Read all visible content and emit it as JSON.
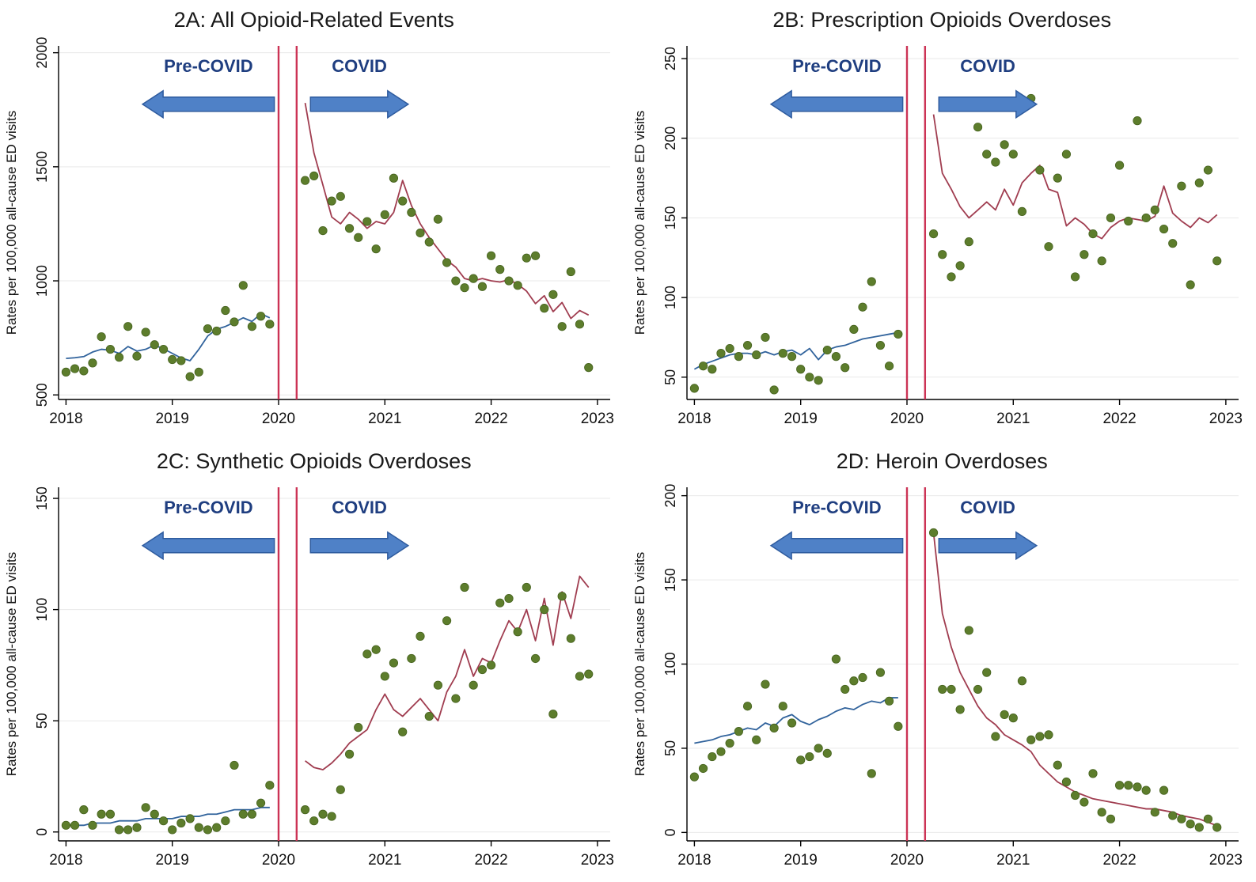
{
  "figure": {
    "background": "#ffffff"
  },
  "styles": {
    "scatter_color": "#5d7d2c",
    "scatter_edge": "#46621e",
    "pre_line_color": "#31639c",
    "covid_line_color": "#a03d50",
    "vline_color": "#cc3355",
    "grid_color": "#e9e9e9",
    "axis_color": "#000000",
    "arrow_fill": "#4f81c7",
    "arrow_edge": "#2e5b9e",
    "annotation_color": "#1f3e80",
    "tick_label_color": "#111111"
  },
  "x_pre": [
    2018.0,
    2018.083,
    2018.167,
    2018.25,
    2018.333,
    2018.417,
    2018.5,
    2018.583,
    2018.667,
    2018.75,
    2018.833,
    2018.917,
    2019.0,
    2019.083,
    2019.167,
    2019.25,
    2019.333,
    2019.417,
    2019.5,
    2019.583,
    2019.667,
    2019.75,
    2019.833,
    2019.917
  ],
  "x_covid": [
    2020.25,
    2020.333,
    2020.417,
    2020.5,
    2020.583,
    2020.667,
    2020.75,
    2020.833,
    2020.917,
    2021.0,
    2021.083,
    2021.167,
    2021.25,
    2021.333,
    2021.417,
    2021.5,
    2021.583,
    2021.667,
    2021.75,
    2021.833,
    2021.917,
    2022.0,
    2022.083,
    2022.167,
    2022.25,
    2022.333,
    2022.417,
    2022.5,
    2022.583,
    2022.667,
    2022.75,
    2022.833,
    2022.917
  ],
  "chart_data": [
    {
      "type": "scatter",
      "title": "2A: All Opioid-Related Events",
      "xlabel": "",
      "ylabel": "Rates per 100,000 all-cause ED visits",
      "xlim": [
        2017.93,
        2023.12
      ],
      "ylim": [
        480,
        2030
      ],
      "yticks": [
        500,
        1000,
        1500,
        2000
      ],
      "xticks": [
        2018,
        2019,
        2020,
        2021,
        2022,
        2023
      ],
      "vlines": [
        2020.0,
        2020.17
      ],
      "pre_label": "Pre-COVID",
      "covid_label": "COVID",
      "pre_arrow": [
        2018.72,
        2019.96
      ],
      "covid_arrow": [
        2020.3,
        2021.22
      ],
      "pre_scatter_y": [
        600,
        615,
        605,
        640,
        755,
        700,
        665,
        800,
        670,
        775,
        720,
        700,
        655,
        650,
        580,
        600,
        790,
        780,
        870,
        820,
        980,
        800,
        845,
        810
      ],
      "pre_line_y": [
        660,
        663,
        668,
        688,
        700,
        696,
        682,
        712,
        692,
        700,
        718,
        702,
        682,
        662,
        650,
        700,
        758,
        788,
        800,
        818,
        838,
        822,
        856,
        838
      ],
      "covid_scatter_y": [
        1440,
        1460,
        1220,
        1350,
        1370,
        1230,
        1190,
        1260,
        1140,
        1290,
        1450,
        1350,
        1300,
        1210,
        1170,
        1270,
        1080,
        1000,
        970,
        1010,
        975,
        1110,
        1050,
        1000,
        980,
        1100,
        1110,
        880,
        940,
        800,
        1040,
        810,
        620
      ],
      "covid_line_y": [
        1780,
        1560,
        1420,
        1280,
        1250,
        1300,
        1270,
        1230,
        1260,
        1250,
        1300,
        1440,
        1330,
        1250,
        1190,
        1140,
        1090,
        1060,
        1010,
        1000,
        1010,
        1000,
        995,
        1005,
        985,
        955,
        900,
        935,
        865,
        905,
        835,
        870,
        850
      ]
    },
    {
      "type": "scatter",
      "title": "2B: Prescription Opioids Overdoses",
      "xlabel": "",
      "ylabel": "Rates per 100,000 all-cause ED visits",
      "xlim": [
        2017.93,
        2023.12
      ],
      "ylim": [
        36,
        258
      ],
      "yticks": [
        50,
        100,
        150,
        200,
        250
      ],
      "xticks": [
        2018,
        2019,
        2020,
        2021,
        2022,
        2023
      ],
      "vlines": [
        2020.0,
        2020.17
      ],
      "pre_label": "Pre-COVID",
      "covid_label": "COVID",
      "pre_arrow": [
        2018.72,
        2019.96
      ],
      "covid_arrow": [
        2020.3,
        2021.22
      ],
      "pre_scatter_y": [
        43,
        57,
        55,
        65,
        68,
        63,
        70,
        64,
        75,
        42,
        65,
        63,
        55,
        50,
        48,
        67,
        63,
        56,
        80,
        94,
        110,
        70,
        57,
        77
      ],
      "pre_line_y": [
        55,
        58,
        60,
        62,
        64,
        65,
        65,
        64,
        66,
        64,
        66,
        67,
        64,
        68,
        61,
        67,
        69,
        70,
        72,
        74,
        75,
        76,
        77,
        78
      ],
      "covid_scatter_y": [
        140,
        127,
        113,
        120,
        135,
        207,
        190,
        185,
        196,
        190,
        154,
        225,
        180,
        132,
        175,
        190,
        113,
        127,
        140,
        123,
        150,
        183,
        148,
        211,
        150,
        155,
        143,
        134,
        170,
        108,
        172,
        180,
        123
      ],
      "covid_line_y": [
        215,
        178,
        168,
        157,
        150,
        155,
        160,
        155,
        168,
        158,
        172,
        178,
        183,
        168,
        166,
        145,
        150,
        146,
        140,
        137,
        144,
        148,
        150,
        149,
        148,
        151,
        170,
        153,
        148,
        144,
        150,
        147,
        152
      ]
    },
    {
      "type": "scatter",
      "title": "2C: Synthetic Opioids Overdoses",
      "xlabel": "",
      "ylabel": "Rates per 100,000 all-cause ED visits",
      "xlim": [
        2017.93,
        2023.12
      ],
      "ylim": [
        -4,
        155
      ],
      "yticks": [
        0,
        50,
        100,
        150
      ],
      "xticks": [
        2018,
        2019,
        2020,
        2021,
        2022,
        2023
      ],
      "vlines": [
        2020.0,
        2020.17
      ],
      "pre_label": "Pre-COVID",
      "covid_label": "COVID",
      "pre_arrow": [
        2018.72,
        2019.96
      ],
      "covid_arrow": [
        2020.3,
        2021.22
      ],
      "pre_scatter_y": [
        3,
        3,
        10,
        3,
        8,
        8,
        1,
        1,
        2,
        11,
        8,
        5,
        1,
        4,
        6,
        2,
        1,
        2,
        5,
        30,
        8,
        8,
        13,
        21
      ],
      "pre_line_y": [
        3,
        3,
        3,
        4,
        4,
        4,
        5,
        5,
        5,
        6,
        6,
        6,
        6,
        7,
        7,
        7,
        8,
        8,
        9,
        10,
        10,
        10,
        11,
        11
      ],
      "covid_scatter_y": [
        10,
        5,
        8,
        7,
        19,
        35,
        47,
        80,
        82,
        70,
        76,
        45,
        78,
        88,
        52,
        66,
        95,
        60,
        110,
        66,
        73,
        75,
        103,
        105,
        90,
        110,
        78,
        100,
        53,
        106,
        87,
        70,
        71
      ],
      "covid_line_y": [
        32,
        29,
        28,
        31,
        35,
        40,
        43,
        46,
        55,
        62,
        55,
        52,
        56,
        60,
        55,
        50,
        63,
        70,
        82,
        70,
        78,
        76,
        86,
        95,
        90,
        100,
        86,
        105,
        84,
        108,
        96,
        115,
        110
      ]
    },
    {
      "type": "scatter",
      "title": "2D: Heroin Overdoses",
      "xlabel": "",
      "ylabel": "Rates per 100,000 all-cause ED visits",
      "xlim": [
        2017.93,
        2023.12
      ],
      "ylim": [
        -5,
        205
      ],
      "yticks": [
        0,
        50,
        100,
        150,
        200
      ],
      "xticks": [
        2018,
        2019,
        2020,
        2021,
        2022,
        2023
      ],
      "vlines": [
        2020.0,
        2020.17
      ],
      "pre_label": "Pre-COVID",
      "covid_label": "COVID",
      "pre_arrow": [
        2018.72,
        2019.96
      ],
      "covid_arrow": [
        2020.3,
        2021.22
      ],
      "pre_scatter_y": [
        33,
        38,
        45,
        48,
        53,
        60,
        75,
        55,
        88,
        62,
        75,
        65,
        43,
        45,
        50,
        47,
        103,
        85,
        90,
        92,
        35,
        95,
        78,
        63
      ],
      "pre_line_y": [
        53,
        54,
        55,
        57,
        58,
        60,
        62,
        61,
        65,
        63,
        68,
        70,
        66,
        64,
        67,
        69,
        72,
        74,
        73,
        76,
        78,
        77,
        80,
        80
      ],
      "covid_scatter_y": [
        178,
        85,
        85,
        73,
        120,
        85,
        95,
        57,
        70,
        68,
        90,
        55,
        57,
        58,
        40,
        30,
        22,
        18,
        35,
        12,
        8,
        28,
        28,
        27,
        25,
        12,
        25,
        10,
        8,
        5,
        3,
        8,
        3
      ],
      "covid_line_y": [
        178,
        130,
        110,
        95,
        85,
        75,
        68,
        64,
        58,
        55,
        52,
        48,
        40,
        35,
        30,
        27,
        24,
        22,
        20,
        19,
        18,
        17,
        16,
        15,
        14,
        14,
        13,
        12,
        10,
        9,
        8,
        6,
        4
      ]
    }
  ]
}
